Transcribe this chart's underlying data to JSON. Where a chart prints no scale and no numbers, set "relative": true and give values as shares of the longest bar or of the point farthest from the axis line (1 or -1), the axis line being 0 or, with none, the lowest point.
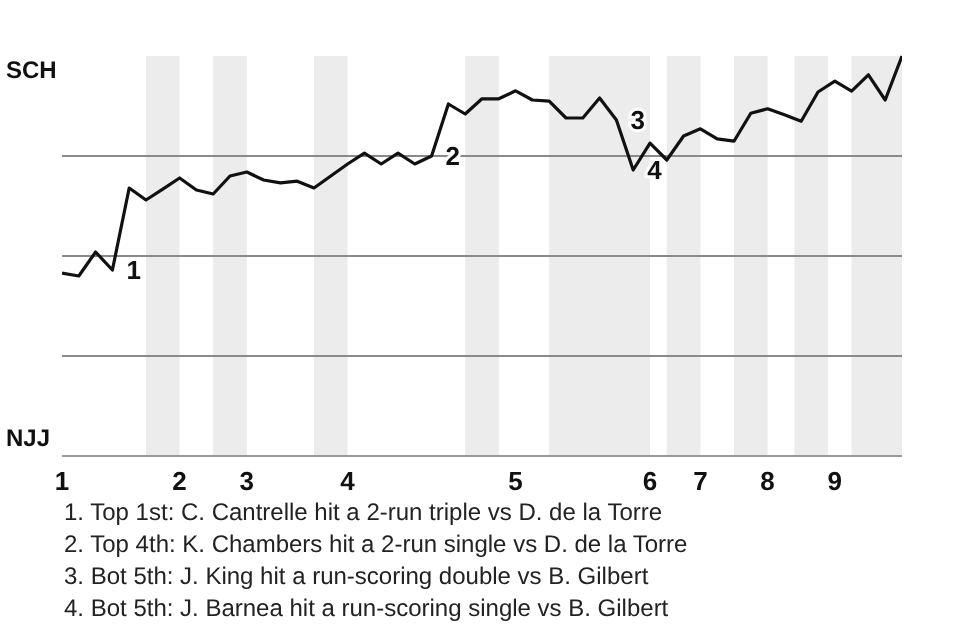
{
  "chart_data": {
    "type": "line",
    "marker": "none",
    "line_style": "solid",
    "grid": "y",
    "relative": true,
    "categories": [
      "1",
      null,
      null,
      null,
      null,
      null,
      null,
      "2",
      null,
      null,
      null,
      "3",
      null,
      null,
      null,
      null,
      null,
      "4",
      null,
      null,
      null,
      null,
      null,
      null,
      null,
      null,
      null,
      "5",
      null,
      null,
      null,
      null,
      null,
      null,
      null,
      "6",
      null,
      null,
      "7",
      null,
      null,
      null,
      "8",
      null,
      null,
      null,
      "9",
      null,
      null,
      null,
      null
    ],
    "series": [
      {
        "color": "#111111",
        "values": [
          0.457,
          0.45,
          0.51,
          0.465,
          0.67,
          0.64,
          0.667,
          0.695,
          0.665,
          0.655,
          0.7,
          0.71,
          0.69,
          0.683,
          0.687,
          0.67,
          0.7,
          0.73,
          0.757,
          0.73,
          0.757,
          0.73,
          0.75,
          0.88,
          0.855,
          0.893,
          0.893,
          0.913,
          0.89,
          0.887,
          0.845,
          0.845,
          0.895,
          0.84,
          0.715,
          0.782,
          0.74,
          0.8,
          0.818,
          0.793,
          0.787,
          0.857,
          0.868,
          0.853,
          0.837,
          0.91,
          0.937,
          0.912,
          0.953,
          0.89,
          1
        ]
      }
    ],
    "annotations": [
      "SCH",
      "NJJ",
      "1",
      "2",
      "3",
      "4",
      "1. Top 1st: C. Cantrelle hit a 2-run triple vs D. de la Torre",
      "2. Top 4th: K. Chambers hit a 2-run single vs D. de la Torre",
      "3. Bot 5th: J. King hit a run-scoring double vs B. Gilbert",
      "4. Bot 5th: J. Barnea hit a run-scoring single vs B. Gilbert"
    ]
  }
}
